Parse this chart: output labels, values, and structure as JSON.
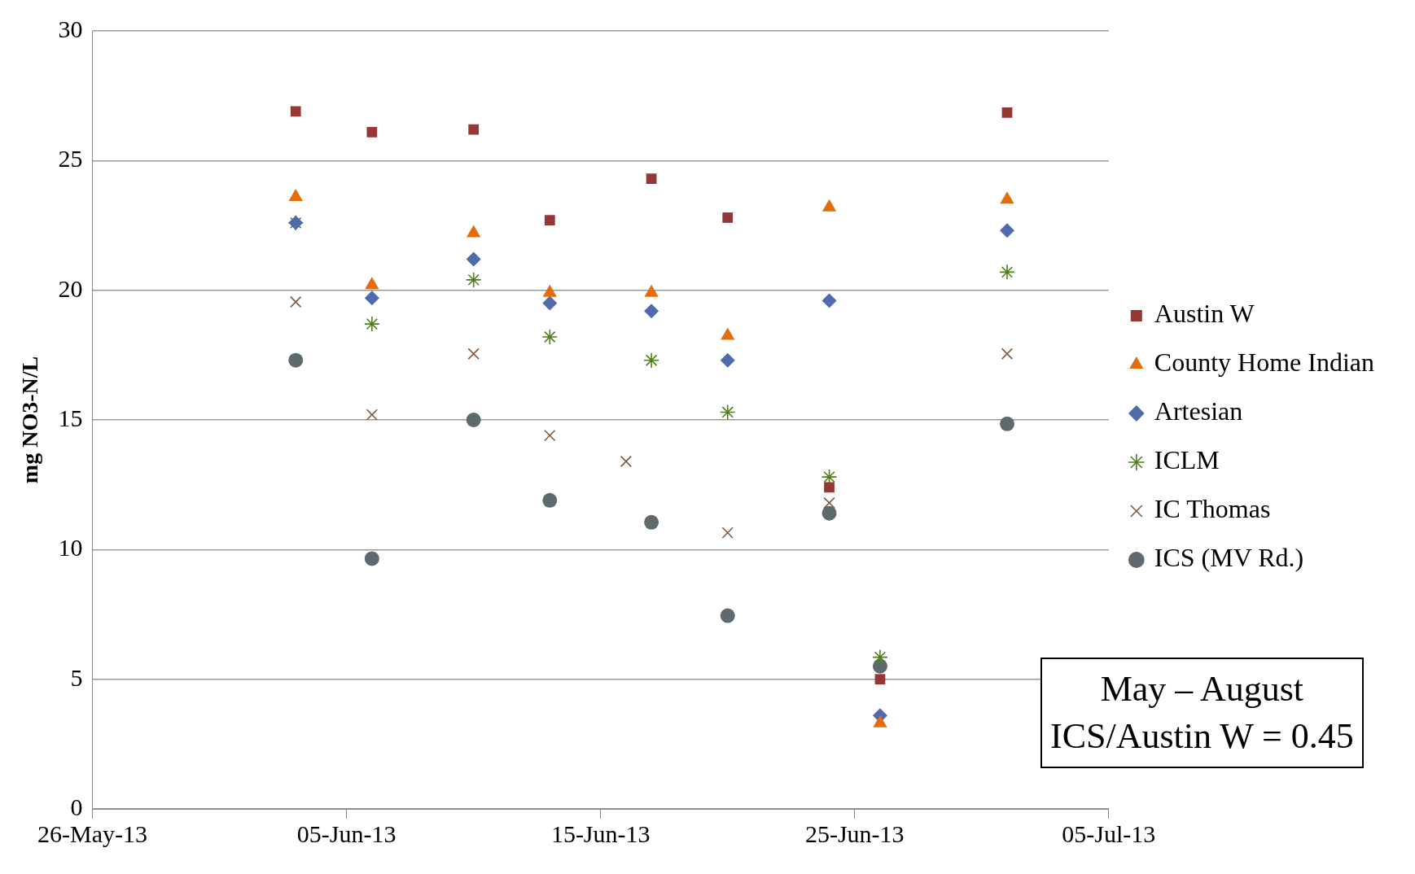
{
  "chart_data": {
    "type": "scatter",
    "ylabel": "mg NO3-N/L",
    "xlim": [
      "2013-05-26",
      "2013-07-05"
    ],
    "xticks": [
      {
        "value": "2013-05-26",
        "label": "26-May-13"
      },
      {
        "value": "2013-06-05",
        "label": "05-Jun-13"
      },
      {
        "value": "2013-06-15",
        "label": "15-Jun-13"
      },
      {
        "value": "2013-06-25",
        "label": "25-Jun-13"
      },
      {
        "value": "2013-07-05",
        "label": "05-Jul-13"
      }
    ],
    "ylim": [
      0,
      30
    ],
    "yticks": [
      0,
      5,
      10,
      15,
      20,
      25,
      30
    ],
    "grid": "y",
    "legend": "right",
    "series": [
      {
        "name": "Austin W",
        "color": "#953735",
        "marker": "square",
        "x": [
          "2013-06-03",
          "2013-06-06",
          "2013-06-10",
          "2013-06-13",
          "2013-06-17",
          "2013-06-20",
          "2013-06-24",
          "2013-06-26",
          "2013-07-01"
        ],
        "values": [
          26.9,
          26.1,
          26.2,
          22.7,
          24.3,
          22.8,
          12.4,
          5.0,
          26.85
        ]
      },
      {
        "name": "County Home Indian",
        "color": "#e46c0a",
        "marker": "triangle",
        "x": [
          "2013-06-03",
          "2013-06-06",
          "2013-06-10",
          "2013-06-13",
          "2013-06-17",
          "2013-06-20",
          "2013-06-24",
          "2013-06-26",
          "2013-07-01"
        ],
        "values": [
          23.6,
          20.2,
          22.2,
          19.9,
          19.9,
          18.25,
          23.2,
          3.3,
          23.5
        ]
      },
      {
        "name": "Artesian",
        "color": "#4f6bad",
        "marker": "diamond",
        "x": [
          "2013-06-03",
          "2013-06-06",
          "2013-06-10",
          "2013-06-13",
          "2013-06-17",
          "2013-06-20",
          "2013-06-24",
          "2013-06-26",
          "2013-07-01"
        ],
        "values": [
          22.6,
          19.7,
          21.2,
          19.5,
          19.2,
          17.3,
          19.6,
          3.6,
          22.3
        ]
      },
      {
        "name": "ICLM",
        "color": "#4e7f1a",
        "marker": "cross",
        "x": [
          "2013-06-03",
          "2013-06-06",
          "2013-06-10",
          "2013-06-13",
          "2013-06-17",
          "2013-06-20",
          "2013-06-24",
          "2013-06-26",
          "2013-07-01"
        ],
        "values": [
          22.6,
          18.7,
          20.4,
          18.2,
          17.3,
          15.3,
          12.8,
          5.85,
          20.7
        ]
      },
      {
        "name": "IC Thomas",
        "color": "#7f5a3f",
        "x": [
          "2013-06-03",
          "2013-06-06",
          "2013-06-10",
          "2013-06-13",
          "2013-06-16",
          "2013-06-20",
          "2013-06-24",
          "2013-07-01"
        ],
        "values": [
          19.55,
          15.2,
          17.55,
          14.4,
          13.4,
          10.65,
          11.8,
          17.55
        ]
      },
      {
        "name": "ICS (MV Rd.)",
        "color": "#5e6a6e",
        "marker": "circle",
        "x": [
          "2013-06-03",
          "2013-06-06",
          "2013-06-10",
          "2013-06-13",
          "2013-06-17",
          "2013-06-20",
          "2013-06-24",
          "2013-06-26",
          "2013-07-01"
        ],
        "values": [
          17.3,
          9.65,
          15.0,
          11.9,
          11.05,
          7.45,
          11.4,
          5.5,
          14.85
        ]
      }
    ],
    "annotations": [
      "May – August",
      "ICS/Austin W = 0.45"
    ]
  }
}
